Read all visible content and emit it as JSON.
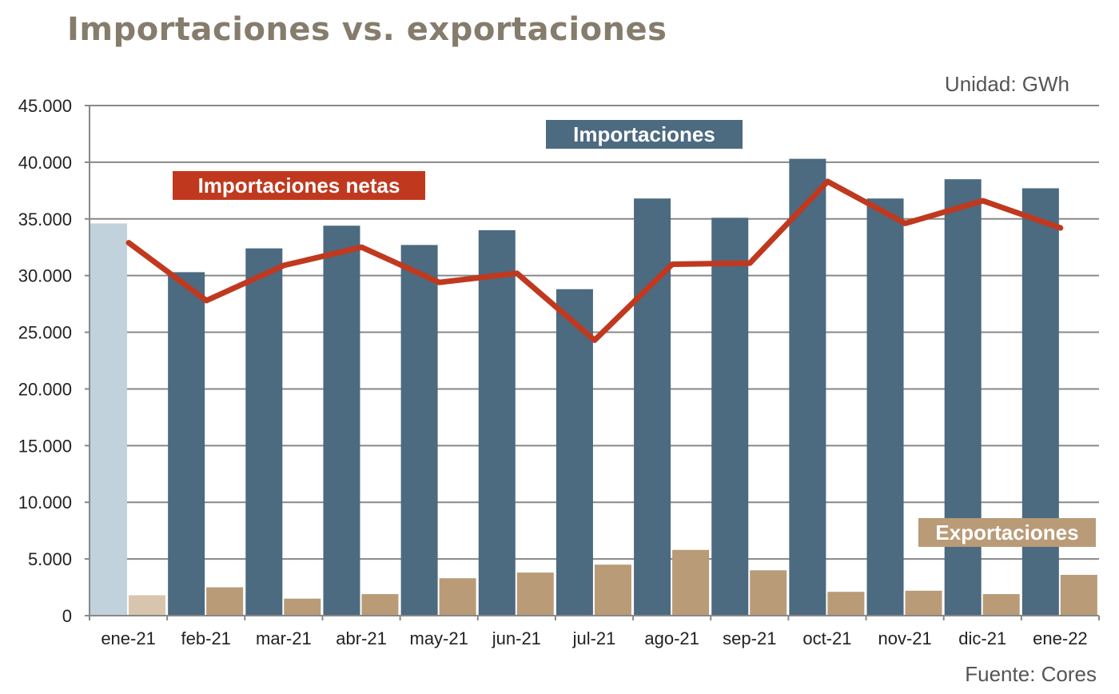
{
  "title": "Importaciones vs. exportaciones",
  "unit": "Unidad: GWh",
  "source": "Fuente: Cores",
  "colors": {
    "imports": "#4c6a80",
    "imports_highlight": "#c1d2dd",
    "exports": "#b99b77",
    "exports_highlight": "#d8c5ad",
    "net_imports": "#c0391f",
    "grid": "#888888"
  },
  "chart_data": {
    "type": "bar",
    "categories": [
      "ene-21",
      "feb-21",
      "mar-21",
      "abr-21",
      "may-21",
      "jun-21",
      "jul-21",
      "ago-21",
      "sep-21",
      "oct-21",
      "nov-21",
      "dic-21",
      "ene-22"
    ],
    "ylim": [
      0,
      45000
    ],
    "yticks": [
      "0",
      "5.000",
      "10.000",
      "15.000",
      "20.000",
      "25.000",
      "30.000",
      "35.000",
      "40.000",
      "45.000"
    ],
    "grid": true,
    "series": [
      {
        "name": "Importaciones",
        "kind": "bar",
        "values": [
          34600,
          30300,
          32400,
          34400,
          32700,
          34000,
          28800,
          36800,
          35100,
          40300,
          36800,
          38500,
          37700
        ]
      },
      {
        "name": "Exportaciones",
        "kind": "bar",
        "values": [
          1800,
          2500,
          1500,
          1900,
          3300,
          3800,
          4500,
          5800,
          4000,
          2100,
          2200,
          1900,
          3600
        ]
      },
      {
        "name": "Importaciones netas",
        "kind": "line",
        "values": [
          32900,
          27800,
          30900,
          32500,
          29400,
          30200,
          24300,
          31000,
          31100,
          38300,
          34600,
          36600,
          34200
        ]
      }
    ]
  }
}
